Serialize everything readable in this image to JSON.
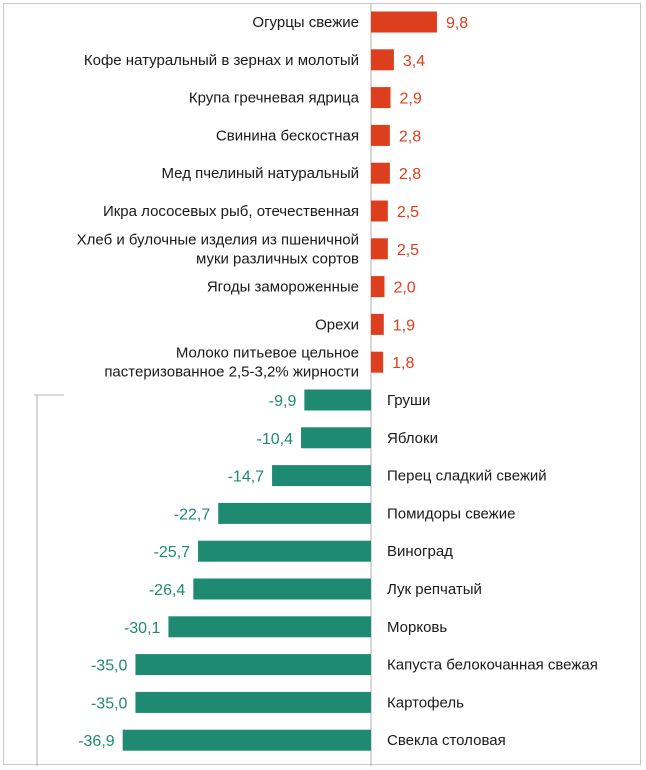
{
  "chart_data": {
    "type": "bar",
    "orientation": "horizontal",
    "title": "",
    "xlabel": "",
    "ylabel": "",
    "grid": false,
    "colors": {
      "positive": "#dd3e1e",
      "negative": "#1f8a72",
      "axis": "#b0b0b0"
    },
    "categories": [
      "Огурцы свежие",
      "Кофе натуральный в зернах и молотый",
      "Крупа гречневая ядрица",
      "Свинина бескостная",
      "Мед пчелиный натуральный",
      "Икра лососевых рыб, отечественная",
      [
        "Хлеб и булочные изделия из пшеничной",
        "муки различных сортов"
      ],
      "Ягоды замороженные",
      "Орехи",
      [
        "Молоко питьевое цельное",
        "пастеризованное 2,5-3,2% жирности"
      ],
      "Груши",
      "Яблоки",
      "Перец сладкий свежий",
      "Помидоры свежие",
      "Виноград",
      "Лук репчатый",
      "Морковь",
      "Капуста белокочанная свежая",
      "Картофель",
      "Свекла столовая"
    ],
    "values": [
      9.8,
      3.4,
      2.9,
      2.8,
      2.8,
      2.5,
      2.5,
      2.0,
      1.9,
      1.8,
      -9.9,
      -10.4,
      -14.7,
      -22.7,
      -25.7,
      -26.4,
      -30.1,
      -35.0,
      -35.0,
      -36.9
    ],
    "labels": [
      "9,8",
      "3,4",
      "2,9",
      "2,8",
      "2,8",
      "2,5",
      "2,5",
      "2,0",
      "1,9",
      "1,8",
      "-9,9",
      "-10,4",
      "-14,7",
      "-22,7",
      "-25,7",
      "-26,4",
      "-30,1",
      "-35,0",
      "-35,0",
      "-36,9"
    ]
  }
}
